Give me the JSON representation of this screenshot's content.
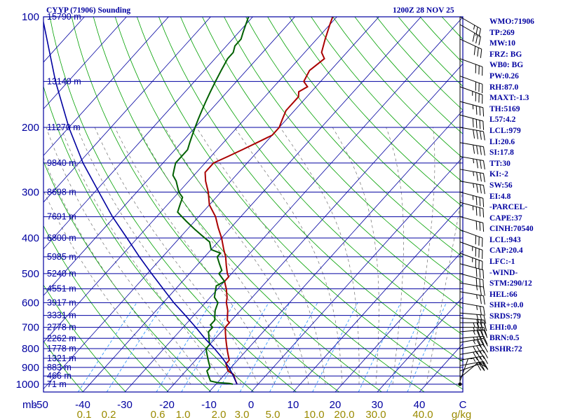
{
  "chart_data": {
    "type": "line",
    "title": "CYYP (71906) Sounding",
    "time_label": "1200Z 28 NOV 25",
    "pressure_unit_label": "mb",
    "mixing_ratio_unit_label": "g/kg",
    "pressure_ticks": [
      100,
      200,
      300,
      400,
      500,
      600,
      700,
      800,
      900,
      1000
    ],
    "temperature_ticks": [
      "-50",
      "-40",
      "-30",
      "-20",
      "-10",
      "0",
      "10",
      "20",
      "30",
      "40"
    ],
    "mixing_ratio_labels": [
      "0.1",
      "0.2",
      "0.6",
      "1.0",
      "2.0",
      "3.0",
      "5.0",
      "10.0",
      "20.0",
      "30.0",
      "40.0"
    ],
    "height_levels": [
      {
        "p": 1000,
        "label": "71 m"
      },
      {
        "p": 950,
        "label": "466 m"
      },
      {
        "p": 900,
        "label": "883 m"
      },
      {
        "p": 850,
        "label": "1321 m"
      },
      {
        "p": 800,
        "label": "1778 m"
      },
      {
        "p": 750,
        "label": "2262 m"
      },
      {
        "p": 700,
        "label": "2778 m"
      },
      {
        "p": 650,
        "label": "3331 m"
      },
      {
        "p": 600,
        "label": "3917 m"
      },
      {
        "p": 550,
        "label": "4551 m"
      },
      {
        "p": 500,
        "label": "5240 m"
      },
      {
        "p": 450,
        "label": "5985 m"
      },
      {
        "p": 400,
        "label": "6800 m"
      },
      {
        "p": 350,
        "label": "7691 m"
      },
      {
        "p": 300,
        "label": "8698 m"
      },
      {
        "p": 250,
        "label": "9840 m"
      },
      {
        "p": 200,
        "label": "11270 m"
      },
      {
        "p": 150,
        "label": "13140 m"
      },
      {
        "p": 100,
        "label": "15790 m"
      }
    ],
    "series": [
      {
        "name": "Temperature",
        "color": "#aa0000",
        "points": [
          {
            "p": 1000,
            "t": -5
          },
          {
            "p": 980,
            "t": -6
          },
          {
            "p": 960,
            "t": -7
          },
          {
            "p": 940,
            "t": -8
          },
          {
            "p": 920,
            "t": -10
          },
          {
            "p": 900,
            "t": -11
          },
          {
            "p": 880,
            "t": -12
          },
          {
            "p": 860,
            "t": -12
          },
          {
            "p": 840,
            "t": -13
          },
          {
            "p": 820,
            "t": -14
          },
          {
            "p": 800,
            "t": -15
          },
          {
            "p": 780,
            "t": -16
          },
          {
            "p": 760,
            "t": -17
          },
          {
            "p": 740,
            "t": -18
          },
          {
            "p": 720,
            "t": -19
          },
          {
            "p": 700,
            "t": -20
          },
          {
            "p": 690,
            "t": -20
          },
          {
            "p": 680,
            "t": -20
          },
          {
            "p": 670,
            "t": -21
          },
          {
            "p": 650,
            "t": -22
          },
          {
            "p": 630,
            "t": -23
          },
          {
            "p": 600,
            "t": -25
          },
          {
            "p": 580,
            "t": -26
          },
          {
            "p": 550,
            "t": -28
          },
          {
            "p": 525,
            "t": -30
          },
          {
            "p": 510,
            "t": -30
          },
          {
            "p": 500,
            "t": -31
          },
          {
            "p": 475,
            "t": -33
          },
          {
            "p": 450,
            "t": -35
          },
          {
            "p": 430,
            "t": -37
          },
          {
            "p": 400,
            "t": -40
          },
          {
            "p": 375,
            "t": -43
          },
          {
            "p": 350,
            "t": -46
          },
          {
            "p": 325,
            "t": -50
          },
          {
            "p": 300,
            "t": -53
          },
          {
            "p": 280,
            "t": -56
          },
          {
            "p": 265,
            "t": -58
          },
          {
            "p": 250,
            "t": -58
          },
          {
            "p": 240,
            "t": -56
          },
          {
            "p": 230,
            "t": -54
          },
          {
            "p": 220,
            "t": -52
          },
          {
            "p": 210,
            "t": -50
          },
          {
            "p": 200,
            "t": -50
          },
          {
            "p": 190,
            "t": -51
          },
          {
            "p": 180,
            "t": -52
          },
          {
            "p": 165,
            "t": -52
          },
          {
            "p": 160,
            "t": -53
          },
          {
            "p": 155,
            "t": -52
          },
          {
            "p": 150,
            "t": -54
          },
          {
            "p": 140,
            "t": -55
          },
          {
            "p": 130,
            "t": -54
          },
          {
            "p": 125,
            "t": -56
          },
          {
            "p": 115,
            "t": -58
          },
          {
            "p": 105,
            "t": -60
          },
          {
            "p": 100,
            "t": -61
          }
        ]
      },
      {
        "name": "Dewpoint",
        "color": "#006000",
        "points": [
          {
            "p": 1000,
            "t": -6
          },
          {
            "p": 995,
            "t": -7
          },
          {
            "p": 990,
            "t": -10
          },
          {
            "p": 980,
            "t": -12
          },
          {
            "p": 960,
            "t": -13
          },
          {
            "p": 940,
            "t": -14
          },
          {
            "p": 920,
            "t": -15
          },
          {
            "p": 900,
            "t": -15
          },
          {
            "p": 880,
            "t": -16
          },
          {
            "p": 860,
            "t": -17
          },
          {
            "p": 840,
            "t": -18
          },
          {
            "p": 820,
            "t": -19
          },
          {
            "p": 800,
            "t": -20
          },
          {
            "p": 780,
            "t": -20
          },
          {
            "p": 760,
            "t": -21
          },
          {
            "p": 740,
            "t": -22
          },
          {
            "p": 720,
            "t": -23
          },
          {
            "p": 700,
            "t": -23
          },
          {
            "p": 690,
            "t": -24
          },
          {
            "p": 680,
            "t": -24
          },
          {
            "p": 670,
            "t": -24
          },
          {
            "p": 650,
            "t": -25
          },
          {
            "p": 630,
            "t": -26
          },
          {
            "p": 600,
            "t": -27
          },
          {
            "p": 580,
            "t": -29
          },
          {
            "p": 560,
            "t": -30
          },
          {
            "p": 540,
            "t": -31
          },
          {
            "p": 525,
            "t": -30
          },
          {
            "p": 500,
            "t": -33
          },
          {
            "p": 490,
            "t": -33
          },
          {
            "p": 470,
            "t": -35
          },
          {
            "p": 450,
            "t": -37
          },
          {
            "p": 440,
            "t": -37
          },
          {
            "p": 430,
            "t": -40
          },
          {
            "p": 420,
            "t": -41
          },
          {
            "p": 410,
            "t": -42
          },
          {
            "p": 400,
            "t": -44
          },
          {
            "p": 380,
            "t": -48
          },
          {
            "p": 360,
            "t": -52
          },
          {
            "p": 350,
            "t": -54
          },
          {
            "p": 340,
            "t": -56
          },
          {
            "p": 325,
            "t": -57
          },
          {
            "p": 310,
            "t": -58
          },
          {
            "p": 300,
            "t": -60
          },
          {
            "p": 280,
            "t": -63
          },
          {
            "p": 270,
            "t": -65
          },
          {
            "p": 260,
            "t": -66
          },
          {
            "p": 250,
            "t": -67
          },
          {
            "p": 240,
            "t": -67
          },
          {
            "p": 230,
            "t": -67
          },
          {
            "p": 220,
            "t": -68
          },
          {
            "p": 210,
            "t": -69
          },
          {
            "p": 200,
            "t": -70
          },
          {
            "p": 190,
            "t": -71
          },
          {
            "p": 180,
            "t": -72
          },
          {
            "p": 170,
            "t": -73
          },
          {
            "p": 160,
            "t": -74
          },
          {
            "p": 150,
            "t": -75
          },
          {
            "p": 140,
            "t": -76
          },
          {
            "p": 130,
            "t": -77
          },
          {
            "p": 125,
            "t": -77
          },
          {
            "p": 120,
            "t": -78
          },
          {
            "p": 115,
            "t": -78
          },
          {
            "p": 110,
            "t": -79
          },
          {
            "p": 100,
            "t": -81
          }
        ]
      },
      {
        "name": "Parcel",
        "color": "#0000a0",
        "points": [
          {
            "p": 1000,
            "t": -5
          },
          {
            "p": 943,
            "t": -8
          },
          {
            "p": 900,
            "t": -10.5
          },
          {
            "p": 850,
            "t": -14
          },
          {
            "p": 800,
            "t": -18
          },
          {
            "p": 750,
            "t": -22.5
          },
          {
            "p": 700,
            "t": -27
          },
          {
            "p": 650,
            "t": -32
          },
          {
            "p": 600,
            "t": -37.5
          },
          {
            "p": 550,
            "t": -43
          },
          {
            "p": 500,
            "t": -49
          },
          {
            "p": 450,
            "t": -55.5
          },
          {
            "p": 400,
            "t": -62.5
          },
          {
            "p": 350,
            "t": -70.5
          },
          {
            "p": 300,
            "t": -79
          },
          {
            "p": 250,
            "t": -89
          },
          {
            "p": 200,
            "t": -100
          },
          {
            "p": 150,
            "t": -113
          },
          {
            "p": 100,
            "t": -130
          }
        ]
      }
    ],
    "wind_barbs": [
      {
        "p": 1000,
        "dir": 180,
        "kt": 5
      },
      {
        "p": 980,
        "dir": 200,
        "kt": 5
      },
      {
        "p": 960,
        "dir": 230,
        "kt": 10
      },
      {
        "p": 920,
        "dir": 250,
        "kt": 20
      },
      {
        "p": 890,
        "dir": 260,
        "kt": 30
      },
      {
        "p": 860,
        "dir": 260,
        "kt": 35
      },
      {
        "p": 830,
        "dir": 260,
        "kt": 40
      },
      {
        "p": 800,
        "dir": 260,
        "kt": 40
      },
      {
        "p": 770,
        "dir": 260,
        "kt": 35
      },
      {
        "p": 750,
        "dir": 265,
        "kt": 35
      },
      {
        "p": 720,
        "dir": 265,
        "kt": 35
      },
      {
        "p": 700,
        "dir": 270,
        "kt": 35
      },
      {
        "p": 680,
        "dir": 270,
        "kt": 35
      },
      {
        "p": 660,
        "dir": 275,
        "kt": 30
      },
      {
        "p": 640,
        "dir": 275,
        "kt": 30
      },
      {
        "p": 600,
        "dir": 280,
        "kt": 25
      },
      {
        "p": 560,
        "dir": 280,
        "kt": 25
      },
      {
        "p": 530,
        "dir": 280,
        "kt": 25
      },
      {
        "p": 500,
        "dir": 285,
        "kt": 30
      },
      {
        "p": 470,
        "dir": 285,
        "kt": 30
      },
      {
        "p": 440,
        "dir": 290,
        "kt": 35
      },
      {
        "p": 410,
        "dir": 290,
        "kt": 35
      },
      {
        "p": 380,
        "dir": 290,
        "kt": 30
      },
      {
        "p": 350,
        "dir": 285,
        "kt": 30
      },
      {
        "p": 320,
        "dir": 285,
        "kt": 35
      },
      {
        "p": 300,
        "dir": 285,
        "kt": 35
      },
      {
        "p": 280,
        "dir": 280,
        "kt": 35
      },
      {
        "p": 260,
        "dir": 280,
        "kt": 35
      },
      {
        "p": 240,
        "dir": 280,
        "kt": 35
      },
      {
        "p": 220,
        "dir": 280,
        "kt": 40
      },
      {
        "p": 200,
        "dir": 280,
        "kt": 40
      },
      {
        "p": 185,
        "dir": 285,
        "kt": 40
      },
      {
        "p": 170,
        "dir": 285,
        "kt": 35
      },
      {
        "p": 155,
        "dir": 290,
        "kt": 35
      },
      {
        "p": 145,
        "dir": 290,
        "kt": 30
      },
      {
        "p": 130,
        "dir": 290,
        "kt": 30
      },
      {
        "p": 115,
        "dir": 295,
        "kt": 30
      },
      {
        "p": 105,
        "dir": 300,
        "kt": 30
      },
      {
        "p": 100,
        "dir": 300,
        "kt": 25
      }
    ]
  },
  "params": [
    "WMO:71906",
    "TP:269",
    "MW:10",
    "FRZ: BG",
    "WB0: BG",
    "PW:0.26",
    "RH:87.0",
    "MAXT:-1.3",
    "TH:5169",
    "L57:4.2",
    "LCL:979",
    "LI:20.6",
    "SI:17.8",
    "TT:30",
    "KI:-2",
    "SW:56",
    "EI:4.8",
    "-PARCEL-",
    "CAPE:37",
    "CINH:70540",
    "LCL:943",
    "CAP:20.4",
    "LFC:-1",
    "-WIND-",
    "STM:290/12",
    "HEL:66",
    "SHR+:0.0",
    "SRDS:79",
    "EHI:0.0",
    "BRN:0.5",
    "BSHR:72"
  ],
  "colors": {
    "axis": "#0000a0",
    "isotherm": "#0000a0",
    "dry_adiabat": "#00a000",
    "moist_adiabat": "#707070",
    "mixing_ratio": "#2090ff",
    "mixing_label": "#9a8a00",
    "temperature": "#aa0000",
    "dewpoint": "#006000",
    "parcel": "#0000a0",
    "background": "#ffffff"
  }
}
